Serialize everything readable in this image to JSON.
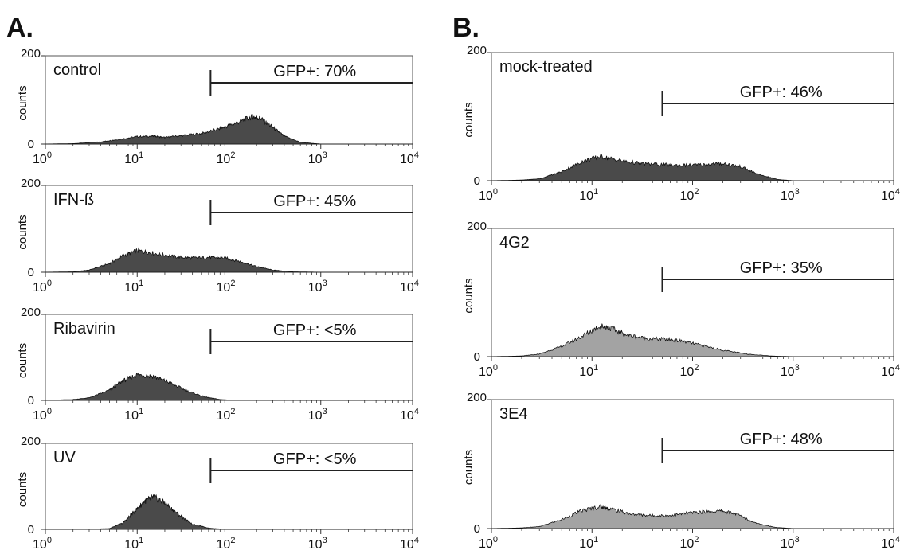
{
  "figure": {
    "panel_labels": [
      "A.",
      "B."
    ],
    "y_axis_label": "counts",
    "x_tick_labels": [
      {
        "base": "10",
        "exp": "0"
      },
      {
        "base": "10",
        "exp": "1"
      },
      {
        "base": "10",
        "exp": "2"
      },
      {
        "base": "10",
        "exp": "3"
      },
      {
        "base": "10",
        "exp": "4"
      }
    ],
    "y_tick_labels": [
      "0",
      "200"
    ],
    "colors": {
      "dark_fill": "#4a4a4a",
      "light_fill": "#a3a3a3",
      "line": "#222222"
    }
  },
  "chart_data": [
    {
      "type": "area",
      "panel": "A.",
      "label": "control",
      "gate_text": "GFP+: 70%",
      "gate_start": 63,
      "gate_end": 10000,
      "xscale": "log",
      "xlim": [
        1,
        10000
      ],
      "ylim": [
        0,
        200
      ],
      "fill": "dark",
      "x": [
        1,
        2,
        4,
        6,
        10,
        15,
        20,
        30,
        50,
        80,
        120,
        180,
        220,
        300,
        400,
        600,
        1000,
        2000,
        10000
      ],
      "y": [
        0,
        1,
        5,
        10,
        17,
        18,
        15,
        19,
        24,
        35,
        48,
        62,
        58,
        38,
        18,
        4,
        0,
        0,
        0
      ]
    },
    {
      "type": "area",
      "panel": "A.",
      "label": "IFN-ß",
      "gate_text": "GFP+: 45%",
      "gate_start": 63,
      "gate_end": 10000,
      "xscale": "log",
      "xlim": [
        1,
        10000
      ],
      "ylim": [
        0,
        200
      ],
      "fill": "dark",
      "x": [
        1,
        2,
        3,
        5,
        7,
        10,
        15,
        25,
        40,
        60,
        90,
        130,
        200,
        300,
        500,
        1000,
        10000
      ],
      "y": [
        0,
        1,
        5,
        20,
        38,
        50,
        44,
        36,
        33,
        34,
        33,
        25,
        13,
        5,
        1,
        0,
        0
      ]
    },
    {
      "type": "area",
      "panel": "A.",
      "label": "Ribavirin",
      "gate_text": "GFP+: <5%",
      "gate_start": 63,
      "gate_end": 10000,
      "xscale": "log",
      "xlim": [
        1,
        10000
      ],
      "ylim": [
        0,
        200
      ],
      "fill": "dark",
      "x": [
        1,
        2,
        3,
        5,
        7,
        10,
        15,
        22,
        35,
        55,
        80,
        120,
        200,
        10000
      ],
      "y": [
        0,
        2,
        6,
        24,
        45,
        60,
        56,
        42,
        22,
        8,
        2,
        0,
        0,
        0
      ]
    },
    {
      "type": "area",
      "panel": "A.",
      "label": "UV",
      "gate_text": "GFP+: <5%",
      "gate_start": 63,
      "gate_end": 10000,
      "xscale": "log",
      "xlim": [
        1,
        10000
      ],
      "ylim": [
        0,
        200
      ],
      "fill": "dark",
      "x": [
        1,
        3,
        5,
        7,
        9,
        12,
        15,
        20,
        28,
        40,
        60,
        90,
        150,
        10000
      ],
      "y": [
        0,
        0,
        2,
        15,
        38,
        65,
        75,
        62,
        35,
        12,
        3,
        0,
        0,
        0
      ]
    },
    {
      "type": "area",
      "panel": "B.",
      "label": "mock-treated",
      "gate_text": "GFP+: 46%",
      "gate_start": 50,
      "gate_end": 10000,
      "xscale": "log",
      "xlim": [
        1,
        10000
      ],
      "ylim": [
        0,
        200
      ],
      "fill": "dark",
      "x": [
        1,
        2,
        3,
        5,
        8,
        12,
        18,
        30,
        50,
        80,
        130,
        200,
        300,
        450,
        700,
        1000,
        10000
      ],
      "y": [
        0,
        1,
        3,
        14,
        30,
        38,
        32,
        27,
        25,
        24,
        25,
        27,
        22,
        10,
        2,
        0,
        0
      ]
    },
    {
      "type": "area",
      "panel": "B.",
      "label": "4G2",
      "gate_text": "GFP+: 35%",
      "gate_start": 50,
      "gate_end": 10000,
      "xscale": "log",
      "xlim": [
        1,
        10000
      ],
      "ylim": [
        0,
        200
      ],
      "fill": "light",
      "x": [
        1,
        2,
        3,
        5,
        8,
        12,
        15,
        22,
        35,
        55,
        80,
        120,
        200,
        350,
        600,
        1000,
        10000
      ],
      "y": [
        0,
        1,
        4,
        16,
        32,
        48,
        45,
        34,
        28,
        27,
        24,
        18,
        10,
        4,
        1,
        0,
        0
      ]
    },
    {
      "type": "area",
      "panel": "B.",
      "label": "3E4",
      "gate_text": "GFP+: 48%",
      "gate_start": 50,
      "gate_end": 10000,
      "xscale": "log",
      "xlim": [
        1,
        10000
      ],
      "ylim": [
        0,
        200
      ],
      "fill": "light",
      "x": [
        1,
        2,
        3,
        5,
        8,
        12,
        16,
        25,
        40,
        60,
        90,
        130,
        200,
        280,
        400,
        650,
        1000,
        10000
      ],
      "y": [
        0,
        1,
        3,
        14,
        28,
        34,
        30,
        22,
        20,
        20,
        24,
        26,
        27,
        22,
        10,
        2,
        0,
        0
      ]
    }
  ]
}
